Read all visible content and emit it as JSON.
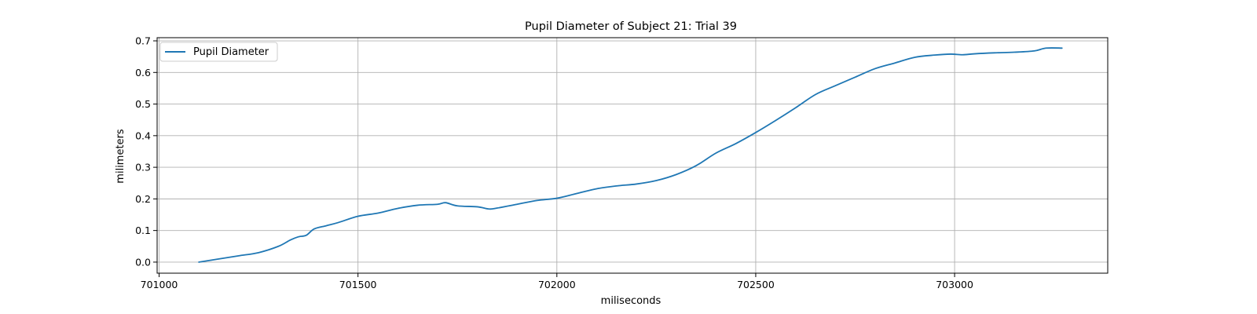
{
  "chart_data": {
    "type": "line",
    "title": "Pupil Diameter of Subject 21: Trial 39",
    "xlabel": "miliseconds",
    "ylabel": "milimeters",
    "xlim": [
      700995,
      703385
    ],
    "ylim": [
      -0.035,
      0.71
    ],
    "xticks": [
      701000,
      701500,
      702000,
      702500,
      703000
    ],
    "yticks": [
      0.0,
      0.1,
      0.2,
      0.3,
      0.4,
      0.5,
      0.6,
      0.7
    ],
    "xtick_labels": [
      "701000",
      "701500",
      "702000",
      "702500",
      "703000"
    ],
    "ytick_labels": [
      "0.0",
      "0.1",
      "0.2",
      "0.3",
      "0.4",
      "0.5",
      "0.6",
      "0.7"
    ],
    "grid": true,
    "legend_position": "upper-left",
    "series": [
      {
        "name": "Pupil Diameter",
        "color": "#1f77b4",
        "x": [
          701100,
          701150,
          701200,
          701250,
          701300,
          701330,
          701350,
          701370,
          701390,
          701420,
          701450,
          701500,
          701550,
          701600,
          701650,
          701700,
          701720,
          701750,
          701800,
          701830,
          701850,
          701900,
          701950,
          702000,
          702050,
          702100,
          702150,
          702200,
          702250,
          702300,
          702350,
          702400,
          702450,
          702500,
          702550,
          702600,
          702650,
          702700,
          702750,
          702800,
          702850,
          702900,
          702950,
          702990,
          703020,
          703050,
          703100,
          703150,
          703200,
          703230,
          703270
        ],
        "y": [
          0.0,
          0.01,
          0.02,
          0.03,
          0.05,
          0.07,
          0.08,
          0.085,
          0.105,
          0.115,
          0.125,
          0.145,
          0.155,
          0.17,
          0.18,
          0.183,
          0.188,
          0.178,
          0.175,
          0.168,
          0.171,
          0.183,
          0.195,
          0.202,
          0.217,
          0.232,
          0.241,
          0.247,
          0.258,
          0.277,
          0.305,
          0.345,
          0.375,
          0.41,
          0.448,
          0.488,
          0.53,
          0.558,
          0.585,
          0.612,
          0.63,
          0.648,
          0.655,
          0.658,
          0.656,
          0.659,
          0.662,
          0.664,
          0.668,
          0.677,
          0.677
        ]
      }
    ]
  }
}
